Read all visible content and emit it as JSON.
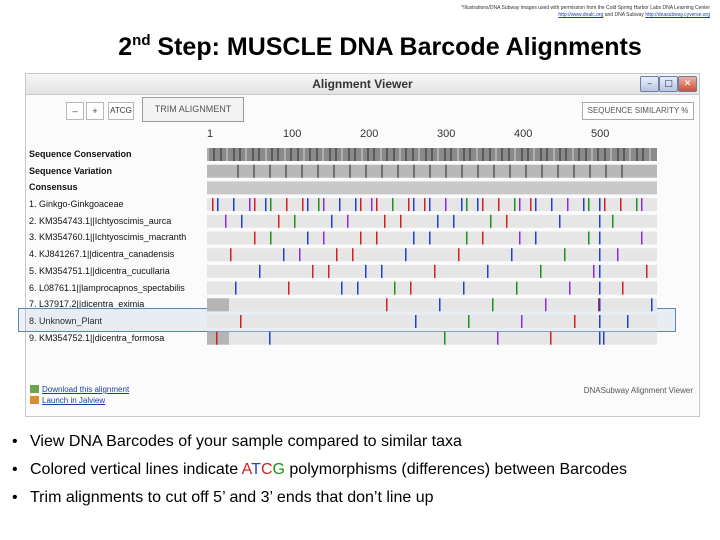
{
  "credit": {
    "line1": "*Illustrations/DNA Subway images used with permission from the Cold Spring Harbor Labs DNA Learning Center",
    "link1": "http://www.dnalc.org",
    "mid": "and DNA Subway",
    "link2": "http://dnasubway.cyverse.org"
  },
  "title": {
    "ordinal_num": "2",
    "ordinal_suffix": "nd",
    "rest": " Step: MUSCLE DNA Barcode Alignments"
  },
  "viewer": {
    "window_title": "Alignment Viewer",
    "win_minimize": "–",
    "win_maximize": "□",
    "win_close": "✕",
    "zoom_out": "–",
    "zoom_in": "+",
    "atcg": "ATCG",
    "trim_label": "TRIM ALIGNMENT",
    "similarity_label": "SEQUENCE SIMILARITY %",
    "ruler_ticks": [
      "1",
      "100",
      "200",
      "300",
      "400",
      "500"
    ],
    "rows": [
      {
        "label": "Sequence Conservation",
        "type": "header"
      },
      {
        "label": "Sequence Variation",
        "type": "header"
      },
      {
        "label": "Consensus",
        "type": "header"
      },
      {
        "label": "1. Ginkgo-Ginkgoaceae",
        "type": "seq"
      },
      {
        "label": "2. KM354743.1||Ichtyoscimis_aurca",
        "type": "seq"
      },
      {
        "label": "3. KM354760.1||Ichtyoscimis_macranth",
        "type": "seq"
      },
      {
        "label": "4. KJ841267.1||dicentra_canadensis",
        "type": "seq"
      },
      {
        "label": "5. KM354751.1||dicentra_cucullaria",
        "type": "seq"
      },
      {
        "label": "6. L08761.1||lamprocapnos_spectabilis",
        "type": "seq"
      },
      {
        "label": "7. L37917.2||dicentra_eximia",
        "type": "seq"
      },
      {
        "label": "8. Unknown_Plant",
        "type": "seq"
      },
      {
        "label": "9. KM354752.1||dicentra_formosa",
        "type": "seq"
      }
    ],
    "download_link": "Download this alignment",
    "jalview_link": "Launch in Jalview",
    "footer_brand": "DNASubway Alignment Viewer"
  },
  "bullets": [
    {
      "text": "View DNA Barcodes of your sample compared to similar taxa"
    },
    {
      "pre": "Colored vertical lines indicate ",
      "a": "A",
      "t": "T",
      "c": "C",
      "g": "G",
      "post": " polymorphisms (differences) between Barcodes"
    },
    {
      "text": "Trim alignments to cut off 5’ and 3’ ends that don’t line up"
    }
  ],
  "colors": {
    "A": "#d02020",
    "T": "#2040d0",
    "C": "#d02020",
    "G": "#1f8f1f",
    "highlight": "#5a86b5"
  }
}
